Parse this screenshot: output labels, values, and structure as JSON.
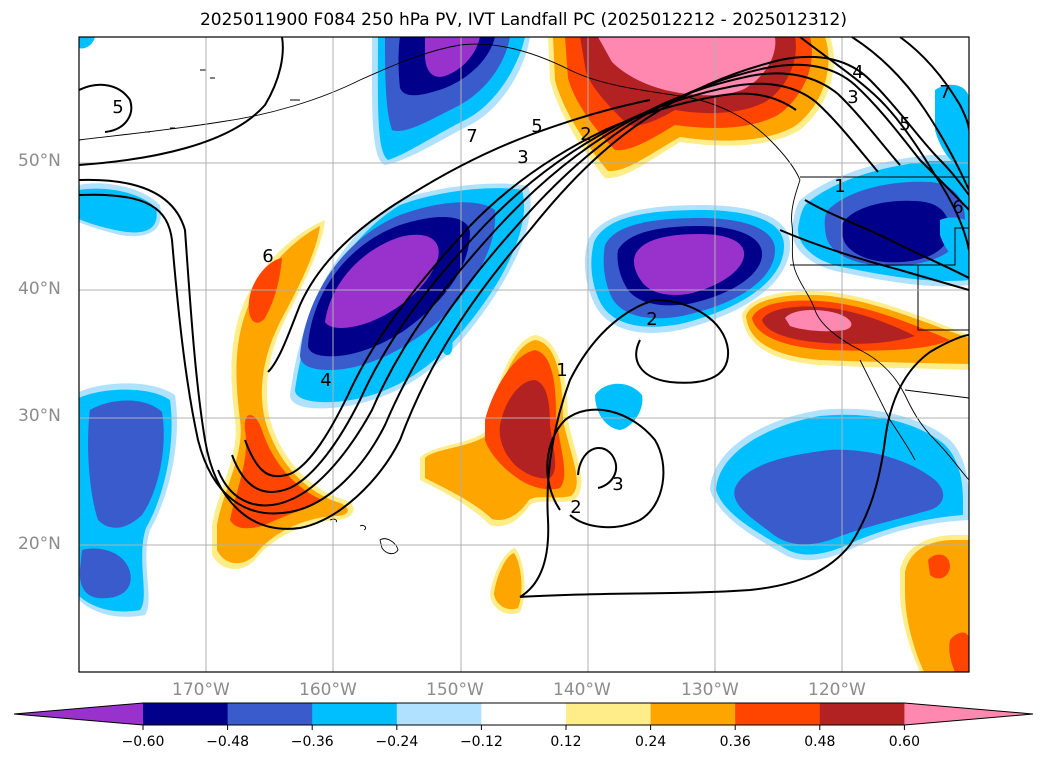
{
  "title": "2025011900 F084 250 hPa PV, IVT Landfall PC (2025012212 - 2025012312)",
  "lat_labels": [
    "50°N",
    "40°N",
    "30°N",
    "20°N"
  ],
  "lon_labels": [
    "170°W",
    "160°W",
    "150°W",
    "140°W",
    "130°W",
    "120°W"
  ],
  "contour_labels": [
    "5",
    "7",
    "5",
    "3",
    "2",
    "4",
    "3",
    "5",
    "7",
    "6",
    "1",
    "6",
    "4",
    "1",
    "2",
    "3",
    "2"
  ],
  "colorbar": {
    "ticks": [
      "−0.60",
      "−0.48",
      "−0.36",
      "−0.24",
      "−0.12",
      "0.12",
      "0.24",
      "0.36",
      "0.48",
      "0.60"
    ],
    "colors": [
      "#9932cc",
      "#00008b",
      "#3a5bcc",
      "#00bfff",
      "#b0e2ff",
      "#ffffff",
      "#ffed8a",
      "#ffa500",
      "#ff4500",
      "#b22222",
      "#ff88b0"
    ]
  },
  "chart_data": {
    "type": "heatmap",
    "title": "2025011900 F084 250 hPa PV, IVT Landfall PC (2025012212 - 2025012312)",
    "projection": "PlateCarree",
    "xlim": [
      -180,
      -110
    ],
    "ylim": [
      10,
      60
    ],
    "x_ticks": [
      -170,
      -160,
      -150,
      -140,
      -130,
      -120
    ],
    "y_ticks": [
      20,
      30,
      40,
      50
    ],
    "grid": true,
    "legend": "bottom",
    "fill_levels": [
      -0.6,
      -0.48,
      -0.36,
      -0.24,
      -0.12,
      0.12,
      0.24,
      0.36,
      0.48,
      0.6
    ],
    "fill_anomalies": [
      {
        "lon": -143,
        "lat": 28,
        "value": 0.45
      },
      {
        "lon": -129,
        "lat": 55,
        "value": 0.65
      },
      {
        "lon": -122,
        "lat": 37,
        "value": 0.62
      },
      {
        "lon": -164,
        "lat": 26,
        "value": 0.38
      },
      {
        "lon": -156,
        "lat": 40,
        "value": -0.65
      },
      {
        "lon": -131,
        "lat": 42,
        "value": -0.62
      },
      {
        "lon": -118,
        "lat": 44,
        "value": -0.5
      },
      {
        "lon": -152,
        "lat": 58,
        "value": -0.6
      },
      {
        "lon": -174,
        "lat": 26,
        "value": -0.36
      },
      {
        "lon": -125,
        "lat": 26,
        "value": -0.36
      },
      {
        "lon": -112,
        "lat": 16,
        "value": 0.4
      }
    ],
    "contours": [
      1,
      2,
      3,
      4,
      5,
      6,
      7
    ]
  }
}
